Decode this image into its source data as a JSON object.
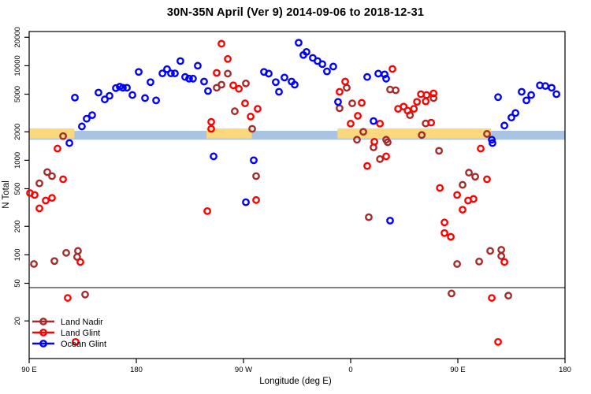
{
  "title": "30N-35N April (Ver 9)   2014-09-06 to 2018-12-31",
  "chart_data": {
    "type": "scatter",
    "title": "30N-35N April (Ver 9)   2014-09-06 to 2018-12-31",
    "xlabel": "Longitude (deg E)",
    "ylabel": "N Total",
    "x_axis": {
      "min": 90,
      "max": 540,
      "ticks": [
        {
          "lon": 90,
          "label": "90 E"
        },
        {
          "lon": 180,
          "label": "180"
        },
        {
          "lon": 270,
          "label": "90 W"
        },
        {
          "lon": 360,
          "label": "0"
        },
        {
          "lon": 450,
          "label": "90 E"
        },
        {
          "lon": 540,
          "label": "180"
        }
      ]
    },
    "y_axis": {
      "min": 8,
      "max": 23000,
      "scale": "log",
      "ticks": [
        20000,
        10000,
        5000,
        2000,
        1000,
        500,
        200,
        100,
        50,
        20
      ]
    },
    "threshold_line": {
      "value": 45,
      "color": "#000000"
    },
    "blue_band": {
      "color": "#A9C3E2",
      "lon_range": [
        90,
        540
      ],
      "value_range": [
        1650,
        2050
      ]
    },
    "orange_band": {
      "color": "#FBD87C",
      "value_range": [
        1700,
        2170
      ],
      "lon_segments": [
        [
          90,
          128
        ],
        [
          239,
          277
        ],
        [
          349,
          478
        ]
      ]
    },
    "legend": {
      "position": "bottom-left",
      "items": [
        {
          "label": "Land Nadir",
          "color": "#A52A2A"
        },
        {
          "label": "Land Glint",
          "color": "#FF0000"
        },
        {
          "label": "Ocean Glint",
          "color": "#0000FF"
        }
      ]
    },
    "series": [
      {
        "name": "Land Nadir",
        "color": "#A52A2A",
        "points": [
          [
            118.5,
            1800
          ],
          [
            105.2,
            750
          ],
          [
            109.2,
            680
          ],
          [
            98.6,
            570
          ],
          [
            94,
            80
          ],
          [
            111.2,
            86
          ],
          [
            121.1,
            105
          ],
          [
            131,
            110
          ],
          [
            130.3,
            95
          ],
          [
            137,
            38
          ],
          [
            256.8,
            8250
          ],
          [
            251.5,
            6300
          ],
          [
            247.5,
            5850
          ],
          [
            272,
            6500
          ],
          [
            262.7,
            3300
          ],
          [
            277.3,
            2150
          ],
          [
            280.6,
            680
          ],
          [
            356.7,
            5850
          ],
          [
            350.7,
            3550
          ],
          [
            361.3,
            4000
          ],
          [
            393.1,
            5600
          ],
          [
            397.8,
            5500
          ],
          [
            409.8,
            3000
          ],
          [
            423,
            2450
          ],
          [
            419.7,
            1850
          ],
          [
            370.6,
            2000
          ],
          [
            365.3,
            1650
          ],
          [
            389.8,
            1650
          ],
          [
            379.2,
            1370
          ],
          [
            391.1,
            1550
          ],
          [
            384.6,
            1030
          ],
          [
            375.2,
            250
          ],
          [
            429.6,
            4550
          ],
          [
            474.5,
            1900
          ],
          [
            434.2,
            1260
          ],
          [
            459.3,
            740
          ],
          [
            464.6,
            670
          ],
          [
            454,
            550
          ],
          [
            449.4,
            80
          ],
          [
            467.9,
            85
          ],
          [
            477.2,
            110
          ],
          [
            486.5,
            113
          ],
          [
            486.5,
            97
          ],
          [
            444.7,
            39
          ],
          [
            492.4,
            37
          ]
        ]
      },
      {
        "name": "Land Glint",
        "color": "#FF0000",
        "points": [
          [
            113.8,
            1330
          ],
          [
            118.5,
            630
          ],
          [
            94.6,
            430
          ],
          [
            90.7,
            450
          ],
          [
            103.9,
            375
          ],
          [
            109.2,
            400
          ],
          [
            98.6,
            310
          ],
          [
            133,
            84
          ],
          [
            122.4,
            35
          ],
          [
            129,
            12
          ],
          [
            251.5,
            17100
          ],
          [
            256.8,
            11800
          ],
          [
            247.5,
            8400
          ],
          [
            261.4,
            6200
          ],
          [
            266.1,
            5700
          ],
          [
            271.3,
            4000
          ],
          [
            281.9,
            3500
          ],
          [
            276,
            2900
          ],
          [
            242.9,
            2550
          ],
          [
            242.9,
            2150
          ],
          [
            280.6,
            380
          ],
          [
            239.6,
            290
          ],
          [
            395.1,
            9250
          ],
          [
            355.4,
            6800
          ],
          [
            350.7,
            5300
          ],
          [
            369.3,
            4050
          ],
          [
            360,
            2440
          ],
          [
            366,
            2950
          ],
          [
            384.6,
            2440
          ],
          [
            399.8,
            3500
          ],
          [
            404.5,
            3700
          ],
          [
            407.8,
            3350
          ],
          [
            413.1,
            3500
          ],
          [
            415.7,
            4150
          ],
          [
            419,
            5000
          ],
          [
            423,
            4200
          ],
          [
            423.7,
            4900
          ],
          [
            429.6,
            5100
          ],
          [
            427.6,
            2500
          ],
          [
            379.9,
            1570
          ],
          [
            389.8,
            1100
          ],
          [
            373.9,
            870
          ],
          [
            469.2,
            1330
          ],
          [
            474.5,
            630
          ],
          [
            434.9,
            510
          ],
          [
            449.4,
            430
          ],
          [
            458.6,
            375
          ],
          [
            463.2,
            390
          ],
          [
            454,
            300
          ],
          [
            438.8,
            220
          ],
          [
            438.8,
            170
          ],
          [
            444.1,
            155
          ],
          [
            489.1,
            84
          ],
          [
            478.5,
            35
          ],
          [
            483.8,
            12
          ]
        ]
      },
      {
        "name": "Ocean Glint",
        "color": "#0000FF",
        "points": [
          [
            128.4,
            4600
          ],
          [
            148.2,
            5200
          ],
          [
            153.5,
            4400
          ],
          [
            157.5,
            4800
          ],
          [
            162.8,
            5800
          ],
          [
            166.1,
            6000
          ],
          [
            168.7,
            5850
          ],
          [
            172.1,
            5850
          ],
          [
            176.7,
            4900
          ],
          [
            182,
            8600
          ],
          [
            187.3,
            4550
          ],
          [
            191.9,
            6700
          ],
          [
            196.6,
            4300
          ],
          [
            201.9,
            8300
          ],
          [
            205.8,
            9200
          ],
          [
            209.1,
            8300
          ],
          [
            212.4,
            8300
          ],
          [
            142.9,
            3000
          ],
          [
            138.3,
            2750
          ],
          [
            134.3,
            2280
          ],
          [
            123.8,
            1520
          ],
          [
            217,
            11200
          ],
          [
            231.6,
            10000
          ],
          [
            221,
            7600
          ],
          [
            224.3,
            7300
          ],
          [
            227.6,
            7300
          ],
          [
            236.9,
            6800
          ],
          [
            240.2,
            5400
          ],
          [
            287.2,
            8600
          ],
          [
            291.2,
            8250
          ],
          [
            297.1,
            6700
          ],
          [
            299.8,
            5300
          ],
          [
            304.4,
            7500
          ],
          [
            310.4,
            6800
          ],
          [
            313,
            6300
          ],
          [
            316.3,
            17500
          ],
          [
            320.3,
            13000
          ],
          [
            322.9,
            14000
          ],
          [
            328.2,
            12100
          ],
          [
            332.2,
            11200
          ],
          [
            336.2,
            10400
          ],
          [
            340.1,
            8700
          ],
          [
            345.4,
            9800
          ],
          [
            373.9,
            7600
          ],
          [
            383.2,
            8250
          ],
          [
            388.5,
            8100
          ],
          [
            389.8,
            7300
          ],
          [
            349.4,
            4150
          ],
          [
            379.2,
            2600
          ],
          [
            244.9,
            1100
          ],
          [
            278.6,
            1000
          ],
          [
            272,
            360
          ],
          [
            393.1,
            230
          ],
          [
            479.1,
            1520
          ],
          [
            483.8,
            4650
          ],
          [
            503.6,
            5300
          ],
          [
            507.6,
            4300
          ],
          [
            511.6,
            4900
          ],
          [
            518.9,
            6200
          ],
          [
            523.5,
            6100
          ],
          [
            528.8,
            5850
          ],
          [
            532.8,
            5000
          ],
          [
            498.4,
            3160
          ],
          [
            495,
            2830
          ],
          [
            489.1,
            2330
          ],
          [
            478.5,
            1650
          ]
        ]
      }
    ]
  }
}
